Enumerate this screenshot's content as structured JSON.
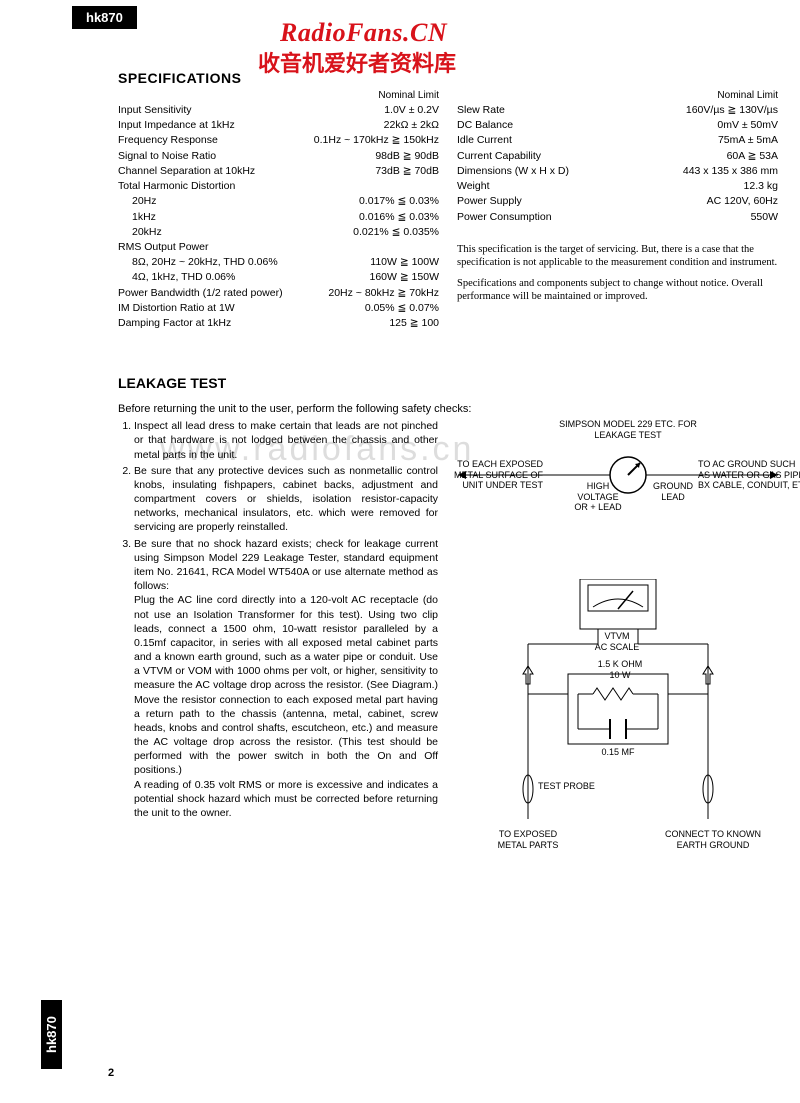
{
  "colors": {
    "red": "#d8121a",
    "black": "#000000",
    "watermark": "#dddddd"
  },
  "model": "hk870",
  "watermark_title": "RadioFans.CN",
  "watermark_sub": "收音机爱好者资料库",
  "watermark_back": "www.radiofans.cn",
  "sections": {
    "spec_heading": "SPECIFICATIONS",
    "leak_heading": "LEAKAGE TEST"
  },
  "spec_colhdr_left": "Nominal   Limit",
  "spec_colhdr_right": "Nominal   Limit",
  "specs_left": [
    {
      "label": "Input Sensitivity",
      "value": "1.0V ± 0.2V"
    },
    {
      "label": "Input Impedance at 1kHz",
      "value": "22kΩ ± 2kΩ"
    },
    {
      "label": "Frequency Response",
      "value": "0.1Hz ~ 170kHz ≧ 150kHz"
    },
    {
      "label": "Signal to Noise Ratio",
      "value": "98dB ≧ 90dB"
    },
    {
      "label": "Channel Separation at 10kHz",
      "value": "73dB ≧ 70dB"
    },
    {
      "label": "Total Harmonic Distortion",
      "value": ""
    },
    {
      "label": "20Hz",
      "value": "0.017% ≦ 0.03%",
      "indent": true
    },
    {
      "label": "1kHz",
      "value": "0.016% ≦ 0.03%",
      "indent": true
    },
    {
      "label": "20kHz",
      "value": "0.021% ≦ 0.035%",
      "indent": true
    },
    {
      "label": "RMS Output Power",
      "value": ""
    },
    {
      "label": "8Ω, 20Hz ~ 20kHz, THD 0.06%",
      "value": "110W ≧ 100W",
      "indent": true
    },
    {
      "label": "4Ω, 1kHz, THD 0.06%",
      "value": "160W ≧ 150W",
      "indent": true
    },
    {
      "label": "Power Bandwidth (1/2 rated power)",
      "value": "20Hz ~ 80kHz ≧ 70kHz"
    },
    {
      "label": "IM Distortion Ratio at 1W",
      "value": "0.05% ≦ 0.07%"
    },
    {
      "label": "Damping Factor at 1kHz",
      "value": "125 ≧ 100"
    }
  ],
  "specs_right": [
    {
      "label": "Slew Rate",
      "value": "160V/µs ≧ 130V/µs"
    },
    {
      "label": "DC Balance",
      "value": "0mV ± 50mV"
    },
    {
      "label": "Idle Current",
      "value": "75mA ± 5mA"
    },
    {
      "label": "Current Capability",
      "value": "60A ≧ 53A"
    },
    {
      "label": "Dimensions (W x H x D)",
      "value": "443 x 135 x 386 mm"
    },
    {
      "label": "Weight",
      "value": "12.3 kg"
    },
    {
      "label": "Power Supply",
      "value": "AC 120V, 60Hz"
    },
    {
      "label": "Power Consumption",
      "value": "550W"
    }
  ],
  "spec_note1": "This specification is the target of servicing. But, there is a case that the specification is not applicable to the measurement condition and instrument.",
  "spec_note2": "Specifications and components subject to change without notice. Overall performance will be maintained or improved.",
  "leak_intro": "Before returning the unit to the user, perform the following safety checks:",
  "leak_items": [
    "Inspect all lead dress to make certain that leads are not pinched or that hardware is not lodged between the chassis and other metal parts in the unit.",
    "Be sure that any protective devices such as nonmetallic control knobs, insulating fishpapers, cabinet backs, adjustment and compartment covers or shields, isolation resistor-capacity networks, mechanical insulators, etc. which were removed for servicing are properly reinstalled."
  ],
  "leak_item3_a": "Be sure that no shock hazard exists; check for leakage current using Simpson Model 229 Leakage Tester, standard equipment item No. 21641, RCA Model WT540A or use alternate method as follows:",
  "leak_item3_b": "Plug the AC line cord directly into a 120-volt AC receptacle (do not use an Isolation Transformer for this test). Using two clip leads, connect a 1500 ohm, 10-watt resistor paralleled by a 0.15mf capacitor, in series with all exposed metal cabinet parts and a known earth ground, such as a water pipe or conduit. Use a VTVM or VOM with 1000 ohms per volt, or higher, sensitivity to measure the AC voltage drop across the resistor. (See Diagram.) Move the resistor connection to each exposed metal part having a return path to the chassis (antenna, metal, cabinet, screw heads, knobs and control shafts, escutcheon, etc.) and measure the AC voltage drop across the resistor. (This test should be performed with the power switch in both the On and Off positions.)",
  "leak_item3_c": "A reading of 0.35 volt RMS or more is excessive and indicates a potential shock hazard which must be corrected before returning the unit to the owner.",
  "diagram1": {
    "title": "SIMPSON MODEL 229 ETC. FOR\nLEAKAGE TEST",
    "left_label": "TO EACH EXPOSED\nMETAL SURFACE OF\nUNIT UNDER TEST",
    "mid_left": "HIGH\nVOLTAGE\nOR + LEAD",
    "mid_right": "GROUND\nLEAD",
    "right_label": "TO AC GROUND SUCH\nAS WATER OR GAS PIPE,\nBX CABLE, CONDUIT, ETC."
  },
  "diagram2": {
    "vtvm1": "VTVM",
    "vtvm2": "AC SCALE",
    "res": "1.5 K OHM\n10 W",
    "cap": "0.15 MF",
    "probe": "TEST PROBE",
    "left": "TO EXPOSED\nMETAL PARTS",
    "right": "CONNECT TO KNOWN\nEARTH GROUND"
  },
  "page_number": "2"
}
